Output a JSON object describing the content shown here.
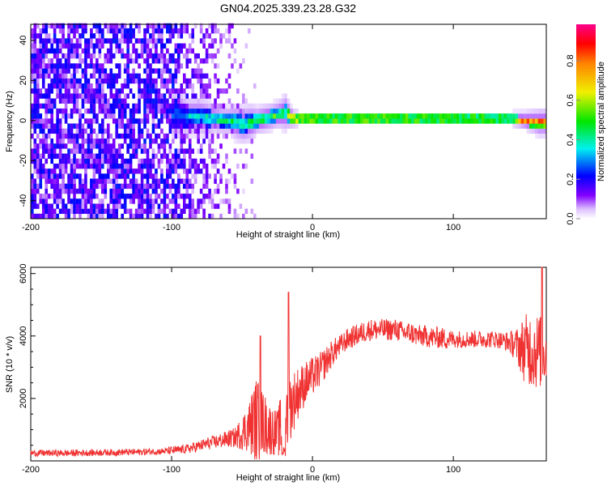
{
  "chart_data": [
    {
      "type": "heatmap",
      "title": "GN04.2025.339.23.28.G32",
      "xlabel": "Height of straight line (km)",
      "ylabel": "Frequency (Hz)",
      "xlim": [
        -200,
        166
      ],
      "ylim": [
        -49,
        48
      ],
      "xticks": [
        -200,
        -100,
        0,
        100
      ],
      "yticks": [
        -40,
        -20,
        0,
        20,
        40
      ],
      "colorbar": {
        "label": "Normalized spectral amplitude",
        "range": [
          0,
          1
        ],
        "ticks": [
          "0.0",
          "0.2",
          "0.4",
          "0.6",
          "0.8"
        ]
      },
      "noise_region": {
        "x": [
          -200,
          -100,
          -60,
          -40
        ],
        "density": [
          0.8,
          0.7,
          0.25,
          0.03
        ],
        "amplitude": [
          0.15,
          0.15,
          0.08,
          0.05
        ]
      },
      "band": {
        "x": [
          -100,
          -95,
          -90,
          -85,
          -80,
          -75,
          -70,
          -65,
          -60,
          -55,
          -50,
          -45,
          -40,
          -35,
          -30,
          -25,
          -20,
          -15,
          -10,
          -5,
          0,
          10,
          20,
          40,
          60,
          80,
          100,
          120,
          140,
          150,
          160,
          166
        ],
        "center_hz": [
          3,
          3,
          2,
          2,
          2,
          1,
          1,
          0,
          0,
          -1,
          -2,
          -1,
          0,
          1,
          2,
          3,
          4,
          1,
          1,
          1,
          1,
          1,
          1,
          1,
          1,
          1,
          1,
          1,
          1,
          0,
          -1,
          -1
        ],
        "halfwidth_hz": [
          5,
          5,
          4,
          4,
          4,
          4,
          3,
          3,
          3,
          4,
          4,
          4,
          3,
          3,
          3,
          3,
          4,
          2,
          1.5,
          1.5,
          1.5,
          1.5,
          1.5,
          1.5,
          1.5,
          1.5,
          1.5,
          1.5,
          1.5,
          2,
          3,
          3
        ],
        "peak_amplitude": [
          0.3,
          0.3,
          0.35,
          0.4,
          0.4,
          0.45,
          0.45,
          0.5,
          0.5,
          0.5,
          0.45,
          0.5,
          0.55,
          0.55,
          0.55,
          0.55,
          0.5,
          0.95,
          0.9,
          0.9,
          0.92,
          0.92,
          0.9,
          0.92,
          0.9,
          0.88,
          0.85,
          0.85,
          0.85,
          0.9,
          0.9,
          0.9
        ]
      }
    },
    {
      "type": "line",
      "xlabel": "Height of straight line (km)",
      "ylabel": "SNR (10 * v/v)",
      "xlim": [
        -200,
        166
      ],
      "ylim": [
        0,
        6200
      ],
      "xticks": [
        -200,
        -100,
        0,
        100
      ],
      "yticks": [
        2000,
        4000,
        6000
      ],
      "color": "#f03232",
      "x_start": -200,
      "x_step": 5,
      "snr_mean": [
        250,
        250,
        250,
        250,
        250,
        250,
        250,
        260,
        260,
        260,
        270,
        270,
        270,
        280,
        280,
        280,
        290,
        300,
        300,
        310,
        330,
        350,
        380,
        420,
        480,
        550,
        600,
        650,
        700,
        750,
        900,
        1100,
        1300,
        1200,
        1000,
        900,
        1200,
        1800,
        2200,
        2500,
        2700,
        2900,
        3200,
        3500,
        3700,
        3900,
        4000,
        4100,
        4200,
        4200,
        4200,
        4200,
        4200,
        4100,
        4100,
        4000,
        4000,
        3950,
        3950,
        3900,
        3900,
        3900,
        3900,
        3900,
        3900,
        3900,
        3900,
        3850,
        3800,
        3700,
        3600,
        3600,
        3500,
        3500
      ],
      "snr_spread": [
        150,
        150,
        150,
        150,
        150,
        150,
        150,
        150,
        150,
        150,
        150,
        150,
        150,
        150,
        150,
        150,
        150,
        150,
        150,
        150,
        200,
        200,
        200,
        250,
        250,
        300,
        300,
        350,
        400,
        450,
        800,
        1200,
        2000,
        1500,
        1200,
        1000,
        2000,
        1500,
        1200,
        1000,
        900,
        800,
        700,
        600,
        500,
        500,
        500,
        500,
        500,
        500,
        500,
        500,
        500,
        500,
        500,
        500,
        500,
        500,
        500,
        500,
        400,
        400,
        400,
        400,
        400,
        400,
        400,
        400,
        500,
        800,
        1500,
        1800,
        1800,
        1500
      ],
      "peaks": [
        {
          "x": -37,
          "y": 4000
        },
        {
          "x": -17,
          "y": 5400
        },
        {
          "x": 163,
          "y": 6200
        }
      ]
    }
  ]
}
